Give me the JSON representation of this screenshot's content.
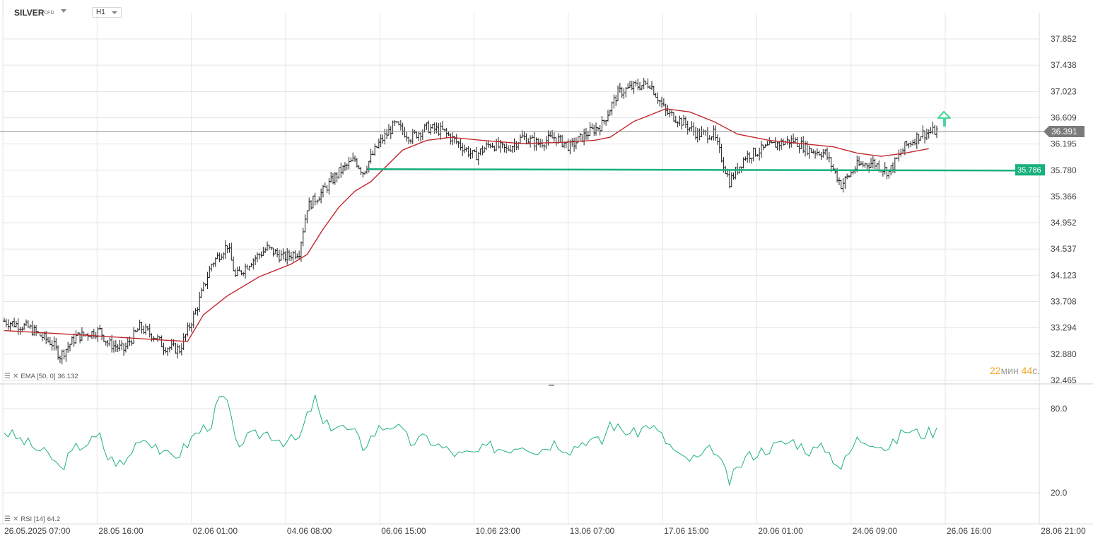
{
  "header": {
    "symbol": "SILVER",
    "symbol_type": "CFD",
    "timeframe": "H1"
  },
  "indicators": {
    "ema_label": "EMA [50, 0]",
    "ema_value": "36.132",
    "rsi_label": "RSI [14]",
    "rsi_value": "64.2"
  },
  "price_axis": {
    "ticks": [
      "37.852",
      "37.438",
      "37.023",
      "36.609",
      "36.195",
      "35.780",
      "35.366",
      "34.952",
      "34.537",
      "34.123",
      "33.708",
      "33.294",
      "32.880",
      "32.465"
    ],
    "current_price": "36.391",
    "level_price": "35.786"
  },
  "rsi_axis": {
    "ticks": [
      "80.0",
      "20.0"
    ]
  },
  "time_axis": {
    "ticks": [
      "26.05.2025  07:00",
      "28.05  16:00",
      "02.06  01:00",
      "04.06  08:00",
      "06.06  15:00",
      "10.06  23:00",
      "13.06  07:00",
      "17.06  15:00",
      "20.06  01:00",
      "24.06  09:00",
      "26.06  16:00",
      "28.06  21:00"
    ]
  },
  "countdown": {
    "minutes": "22",
    "min_unit": "мин",
    "seconds": "44",
    "sec_unit": "с."
  },
  "colors": {
    "ema": "#c0282d",
    "rsi": "#1fb27a",
    "level": "#17b07e",
    "level_label_bg": "#17b07e",
    "price_label_bg": "#7a7a7a",
    "arrow": "#4fd6a0",
    "grid": "#e6e6e6",
    "countdown": "#f5a623"
  },
  "chart_data": {
    "type": "ohlc",
    "instrument": "SILVER",
    "timeframe": "H1",
    "x_range": [
      "26.05.2025 07:00",
      "28.06 21:00"
    ],
    "y_range": [
      32.465,
      37.852
    ],
    "price_path": [
      [
        0,
        33.4
      ],
      [
        3,
        33.3
      ],
      [
        6,
        33.05
      ],
      [
        7,
        32.85
      ],
      [
        9,
        33.15
      ],
      [
        12,
        33.25
      ],
      [
        13,
        33.05
      ],
      [
        15,
        32.95
      ],
      [
        17,
        33.3
      ],
      [
        19,
        33.15
      ],
      [
        20,
        33.0
      ],
      [
        22,
        32.95
      ],
      [
        24,
        33.55
      ],
      [
        26,
        34.3
      ],
      [
        28,
        34.6
      ],
      [
        29,
        34.1
      ],
      [
        31,
        34.35
      ],
      [
        33,
        34.55
      ],
      [
        35,
        34.4
      ],
      [
        37,
        34.5
      ],
      [
        38,
        35.2
      ],
      [
        40,
        35.45
      ],
      [
        42,
        35.75
      ],
      [
        44,
        35.95
      ],
      [
        45,
        35.75
      ],
      [
        47,
        36.2
      ],
      [
        49,
        36.5
      ],
      [
        51,
        36.3
      ],
      [
        53,
        36.45
      ],
      [
        55,
        36.4
      ],
      [
        57,
        36.2
      ],
      [
        59,
        36.0
      ],
      [
        61,
        36.2
      ],
      [
        63,
        36.1
      ],
      [
        65,
        36.3
      ],
      [
        67,
        36.2
      ],
      [
        69,
        36.3
      ],
      [
        71,
        36.15
      ],
      [
        73,
        36.35
      ],
      [
        75,
        36.5
      ],
      [
        77,
        37.0
      ],
      [
        79,
        37.1
      ],
      [
        81,
        37.15
      ],
      [
        83,
        36.7
      ],
      [
        85,
        36.55
      ],
      [
        87,
        36.35
      ],
      [
        89,
        36.35
      ],
      [
        91,
        35.6
      ],
      [
        93,
        36.0
      ],
      [
        95,
        36.1
      ],
      [
        97,
        36.2
      ],
      [
        99,
        36.25
      ],
      [
        101,
        36.1
      ],
      [
        103,
        36.05
      ],
      [
        105,
        35.55
      ],
      [
        107,
        35.85
      ],
      [
        109,
        35.9
      ],
      [
        111,
        35.75
      ],
      [
        113,
        36.15
      ],
      [
        115,
        36.35
      ],
      [
        117,
        36.4
      ]
    ],
    "ema50_path": [
      [
        0,
        33.25
      ],
      [
        10,
        33.18
      ],
      [
        20,
        33.1
      ],
      [
        23,
        33.08
      ],
      [
        25,
        33.5
      ],
      [
        28,
        33.8
      ],
      [
        32,
        34.1
      ],
      [
        36,
        34.3
      ],
      [
        38,
        34.45
      ],
      [
        40,
        34.85
      ],
      [
        42,
        35.2
      ],
      [
        44,
        35.45
      ],
      [
        46,
        35.6
      ],
      [
        48,
        35.85
      ],
      [
        50,
        36.1
      ],
      [
        53,
        36.25
      ],
      [
        56,
        36.3
      ],
      [
        60,
        36.25
      ],
      [
        65,
        36.2
      ],
      [
        70,
        36.22
      ],
      [
        74,
        36.25
      ],
      [
        76,
        36.3
      ],
      [
        79,
        36.55
      ],
      [
        83,
        36.75
      ],
      [
        86,
        36.7
      ],
      [
        89,
        36.55
      ],
      [
        92,
        36.35
      ],
      [
        96,
        36.25
      ],
      [
        100,
        36.2
      ],
      [
        104,
        36.15
      ],
      [
        107,
        36.05
      ],
      [
        110,
        36.0
      ],
      [
        113,
        36.05
      ],
      [
        116,
        36.12
      ]
    ],
    "horizontal_level": 35.786,
    "last_price": 36.391,
    "rsi": {
      "period": 14,
      "y_ticks": [
        80.0,
        20.0
      ],
      "last": 64.2,
      "path": [
        [
          0,
          64
        ],
        [
          3,
          55
        ],
        [
          6,
          45
        ],
        [
          7,
          37
        ],
        [
          9,
          52
        ],
        [
          12,
          60
        ],
        [
          13,
          45
        ],
        [
          15,
          40
        ],
        [
          17,
          60
        ],
        [
          19,
          55
        ],
        [
          20,
          46
        ],
        [
          22,
          48
        ],
        [
          24,
          62
        ],
        [
          26,
          70
        ],
        [
          27,
          87
        ],
        [
          28,
          85
        ],
        [
          29,
          55
        ],
        [
          31,
          60
        ],
        [
          33,
          63
        ],
        [
          35,
          57
        ],
        [
          37,
          58
        ],
        [
          38,
          74
        ],
        [
          39,
          87
        ],
        [
          40,
          68
        ],
        [
          42,
          68
        ],
        [
          44,
          62
        ],
        [
          45,
          53
        ],
        [
          47,
          66
        ],
        [
          49,
          69
        ],
        [
          51,
          56
        ],
        [
          53,
          59
        ],
        [
          55,
          52
        ],
        [
          57,
          47
        ],
        [
          59,
          48
        ],
        [
          61,
          53
        ],
        [
          63,
          51
        ],
        [
          65,
          55
        ],
        [
          67,
          50
        ],
        [
          69,
          56
        ],
        [
          71,
          51
        ],
        [
          73,
          58
        ],
        [
          75,
          56
        ],
        [
          76,
          70
        ],
        [
          77,
          66
        ],
        [
          79,
          62
        ],
        [
          81,
          69
        ],
        [
          83,
          57
        ],
        [
          85,
          44
        ],
        [
          87,
          44
        ],
        [
          89,
          52
        ],
        [
          91,
          28
        ],
        [
          93,
          45
        ],
        [
          95,
          50
        ],
        [
          97,
          54
        ],
        [
          99,
          57
        ],
        [
          101,
          50
        ],
        [
          103,
          52
        ],
        [
          105,
          38
        ],
        [
          107,
          58
        ],
        [
          109,
          57
        ],
        [
          111,
          51
        ],
        [
          113,
          65
        ],
        [
          115,
          62
        ],
        [
          117,
          64
        ]
      ]
    }
  }
}
